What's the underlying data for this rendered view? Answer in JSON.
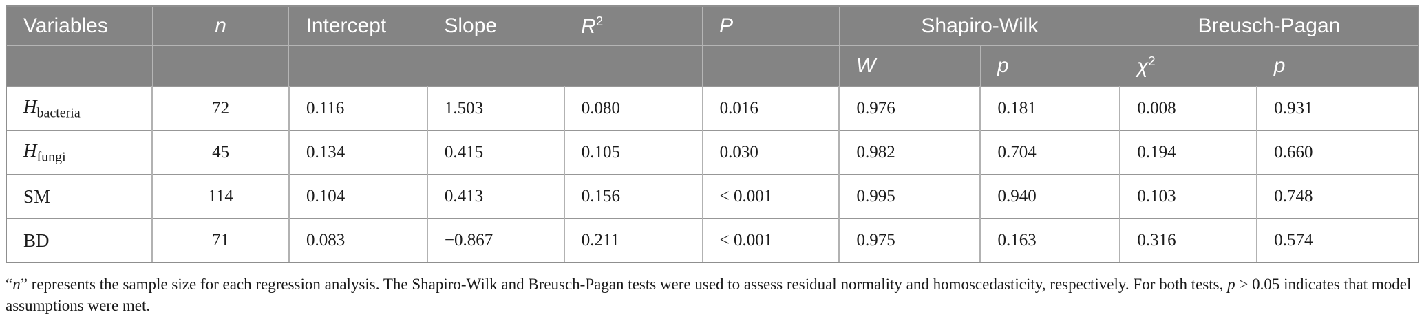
{
  "colors": {
    "header_bg": "#848484",
    "header_text": "#ffffff",
    "header_grid": "#b5b5b5",
    "row_line": "#979797",
    "col_line": "#b2b2b2",
    "outer_border": "#8f8f8f",
    "body_text": "#1c1c1c"
  },
  "table": {
    "columns_pct": [
      10.3,
      9.7,
      9.8,
      9.7,
      9.8,
      9.7,
      10.0,
      9.9,
      9.7,
      11.4
    ],
    "header_row1": [
      {
        "text": "Variables",
        "name": "col-header-variables"
      },
      {
        "text": "n",
        "italic": true,
        "align": "center",
        "name": "col-header-n"
      },
      {
        "text": "Intercept",
        "name": "col-header-intercept"
      },
      {
        "text": "Slope",
        "name": "col-header-slope"
      },
      {
        "text": "R",
        "sup": "2",
        "italic": true,
        "name": "col-header-r-squared"
      },
      {
        "text": "P",
        "italic": true,
        "name": "col-header-p"
      },
      {
        "text": "Shapiro-Wilk",
        "colspan": 2,
        "align": "center",
        "name": "col-header-shapiro-wilk"
      },
      {
        "text": "Breusch-Pagan",
        "colspan": 2,
        "align": "center",
        "name": "col-header-breusch-pagan"
      }
    ],
    "header_row2": [
      {
        "text": "",
        "name": "subheader-empty"
      },
      {
        "text": "",
        "name": "subheader-empty"
      },
      {
        "text": "",
        "name": "subheader-empty"
      },
      {
        "text": "",
        "name": "subheader-empty"
      },
      {
        "text": "",
        "name": "subheader-empty"
      },
      {
        "text": "",
        "name": "subheader-empty"
      },
      {
        "text": "W",
        "italic": true,
        "name": "subheader-shapiro-w"
      },
      {
        "text": "p",
        "italic": true,
        "name": "subheader-shapiro-p"
      },
      {
        "text": "χ",
        "sup": "2",
        "italic": true,
        "name": "subheader-chi-squared"
      },
      {
        "text": "p",
        "italic": true,
        "name": "subheader-breusch-p"
      }
    ],
    "rows": [
      {
        "variable": {
          "text": "H",
          "italic": true,
          "sub": "bacteria"
        },
        "values": [
          "72",
          "0.116",
          "1.503",
          "0.080",
          "0.016",
          "0.976",
          "0.181",
          "0.008",
          "0.931"
        ]
      },
      {
        "variable": {
          "text": "H",
          "italic": true,
          "sub": "fungi"
        },
        "values": [
          "45",
          "0.134",
          "0.415",
          "0.105",
          "0.030",
          "0.982",
          "0.704",
          "0.194",
          "0.660"
        ]
      },
      {
        "variable": {
          "text": "SM"
        },
        "values": [
          "114",
          "0.104",
          "0.413",
          "0.156",
          "< 0.001",
          "0.995",
          "0.940",
          "0.103",
          "0.748"
        ]
      },
      {
        "variable": {
          "text": "BD"
        },
        "values": [
          "71",
          "0.083",
          "−0.867",
          "0.211",
          "< 0.001",
          "0.975",
          "0.163",
          "0.316",
          "0.574"
        ]
      }
    ]
  },
  "footnote": {
    "segments": [
      {
        "text": "“"
      },
      {
        "text": "n",
        "italic": true
      },
      {
        "text": "” represents the sample size for each regression analysis. The Shapiro-Wilk and Breusch-Pagan tests were used to assess residual normality and homoscedasticity, respectively. For both tests, "
      },
      {
        "text": "p",
        "italic": true
      },
      {
        "text": " > 0.05 indicates that model assumptions were met."
      }
    ]
  }
}
